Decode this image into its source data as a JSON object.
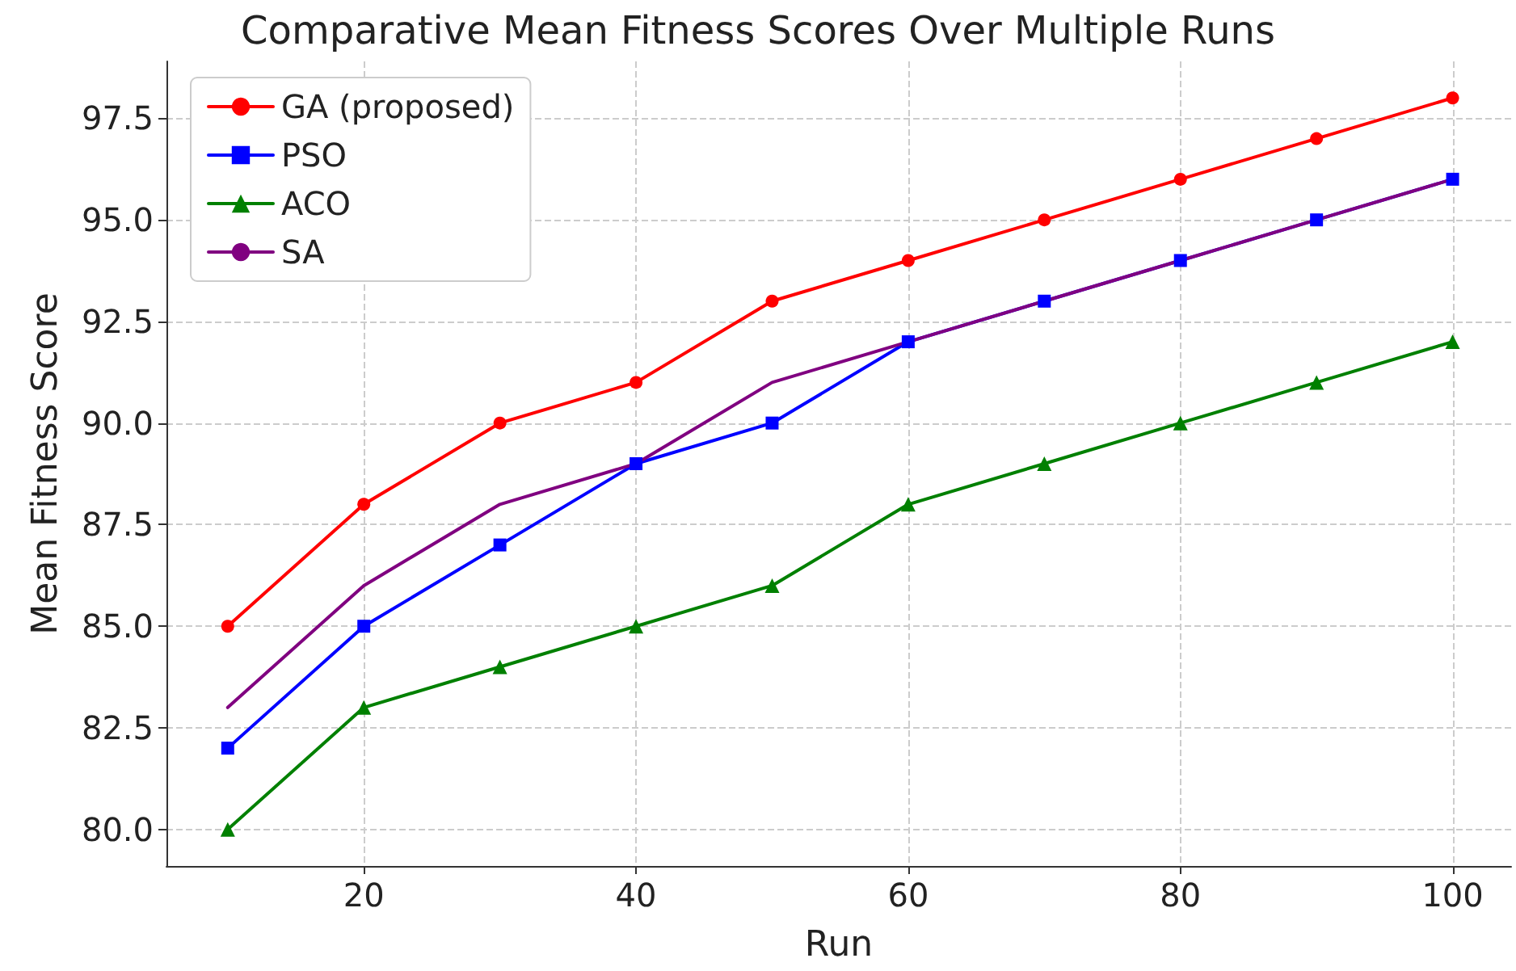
{
  "chart_data": {
    "type": "line",
    "title": "Comparative Mean Fitness Scores Over Multiple Runs",
    "xlabel": "Run",
    "ylabel": "Mean Fitness Score",
    "x": [
      10,
      20,
      30,
      40,
      50,
      60,
      70,
      80,
      90,
      100
    ],
    "series": [
      {
        "name": "GA (proposed)",
        "color": "#ff0000",
        "marker": "circle",
        "values": [
          85,
          88,
          90,
          91,
          93,
          94,
          95,
          96,
          97,
          98
        ]
      },
      {
        "name": "PSO",
        "color": "#0000ff",
        "marker": "square",
        "values": [
          82,
          85,
          87,
          89,
          90,
          92,
          93,
          94,
          95,
          96
        ]
      },
      {
        "name": "ACO",
        "color": "#008000",
        "marker": "triangle",
        "values": [
          80,
          83,
          84,
          85,
          86,
          88,
          89,
          90,
          91,
          92
        ]
      },
      {
        "name": "SA",
        "color": "#800080",
        "marker": "none",
        "values": [
          83,
          86,
          88,
          89,
          91,
          92,
          93,
          94,
          95,
          96
        ]
      }
    ],
    "xlim": [
      5.5,
      104.3
    ],
    "xticks": [
      20,
      40,
      60,
      80,
      100
    ],
    "ylim": [
      79.1,
      98.9
    ],
    "yticks": [
      {
        "value": 80,
        "label": "80.0"
      },
      {
        "value": 82.5,
        "label": "82.5"
      },
      {
        "value": 85,
        "label": "85.0"
      },
      {
        "value": 87.5,
        "label": "87.5"
      },
      {
        "value": 90,
        "label": "90.0"
      },
      {
        "value": 92.5,
        "label": "92.5"
      },
      {
        "value": 95,
        "label": "95.0"
      },
      {
        "value": 97.5,
        "label": "97.5"
      }
    ],
    "grid": true,
    "legend": "top left",
    "line_style": "solid"
  }
}
